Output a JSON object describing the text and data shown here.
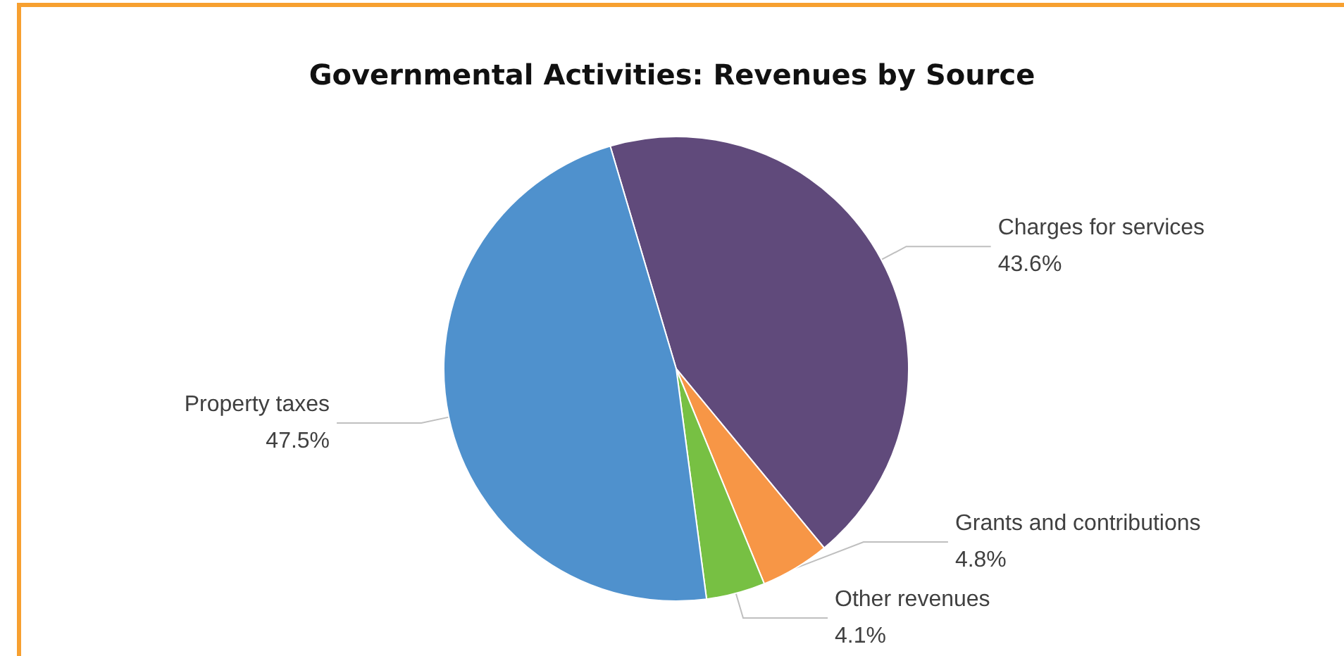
{
  "chart_data": {
    "type": "pie",
    "title": "Governmental Activities: Revenues by Source",
    "categories": [
      "Charges for services",
      "Grants and contributions",
      "Other revenues",
      "Property taxes"
    ],
    "values": [
      43.6,
      4.8,
      4.1,
      47.5
    ],
    "colors": [
      "#604a7b",
      "#f79646",
      "#77c043",
      "#4f91cd"
    ],
    "value_labels": [
      "43.6%",
      "4.8%",
      "4.1%",
      "47.5%"
    ]
  }
}
